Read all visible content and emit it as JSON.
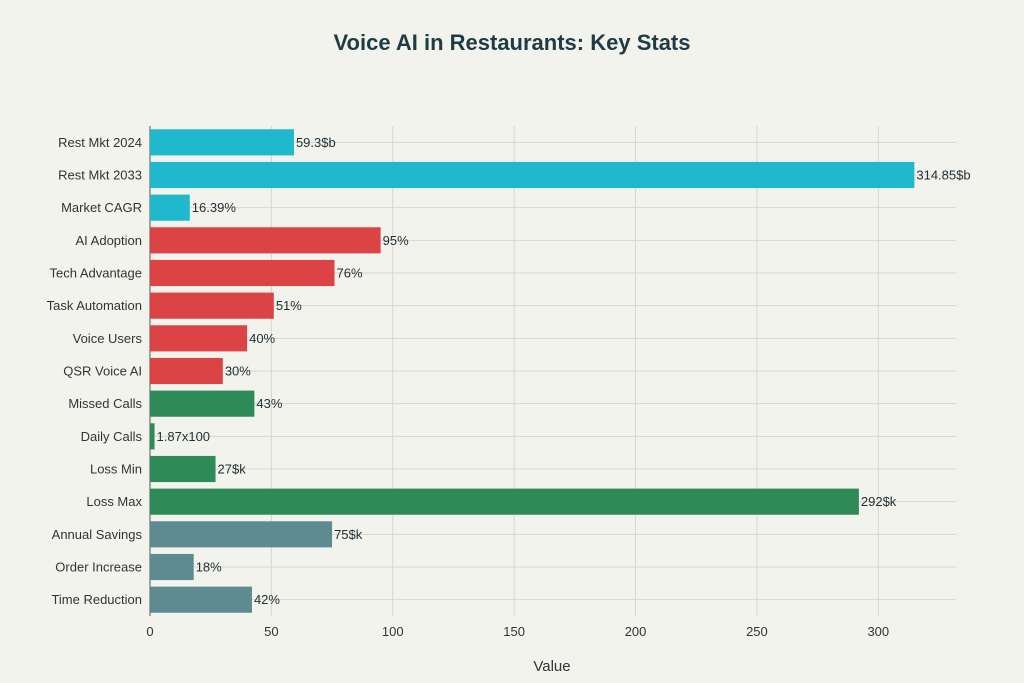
{
  "chart_data": {
    "type": "bar",
    "orientation": "horizontal",
    "title": "Voice AI in Restaurants: Key Stats",
    "xlabel": "Value",
    "ylabel": "",
    "xlim": [
      0,
      332
    ],
    "xticks": [
      0,
      50,
      100,
      150,
      200,
      250,
      300
    ],
    "grid": true,
    "categories": [
      "Rest Mkt 2024",
      "Rest Mkt 2033",
      "Market CAGR",
      "AI Adoption",
      "Tech Advantage",
      "Task Automation",
      "Voice Users",
      "QSR Voice AI",
      "Missed Calls",
      "Daily Calls",
      "Loss Min",
      "Loss Max",
      "Annual Savings",
      "Order Increase",
      "Time Reduction"
    ],
    "values": [
      59.3,
      314.85,
      16.39,
      95,
      76,
      51,
      40,
      30,
      43,
      1.87,
      27,
      292,
      75,
      18,
      42
    ],
    "labels": [
      "59.3$b",
      "314.85$b",
      "16.39%",
      "95%",
      "76%",
      "51%",
      "40%",
      "30%",
      "43%",
      "1.87x100",
      "27$k",
      "292$k",
      "75$k",
      "18%",
      "42%"
    ],
    "colors": [
      "#1fb8cd",
      "#1fb8cd",
      "#1fb8cd",
      "#dc4345",
      "#dc4345",
      "#dc4345",
      "#dc4345",
      "#dc4345",
      "#2e8b57",
      "#2e8b57",
      "#2e8b57",
      "#2e8b57",
      "#5e8a91",
      "#5e8a91",
      "#5e8a91"
    ]
  }
}
